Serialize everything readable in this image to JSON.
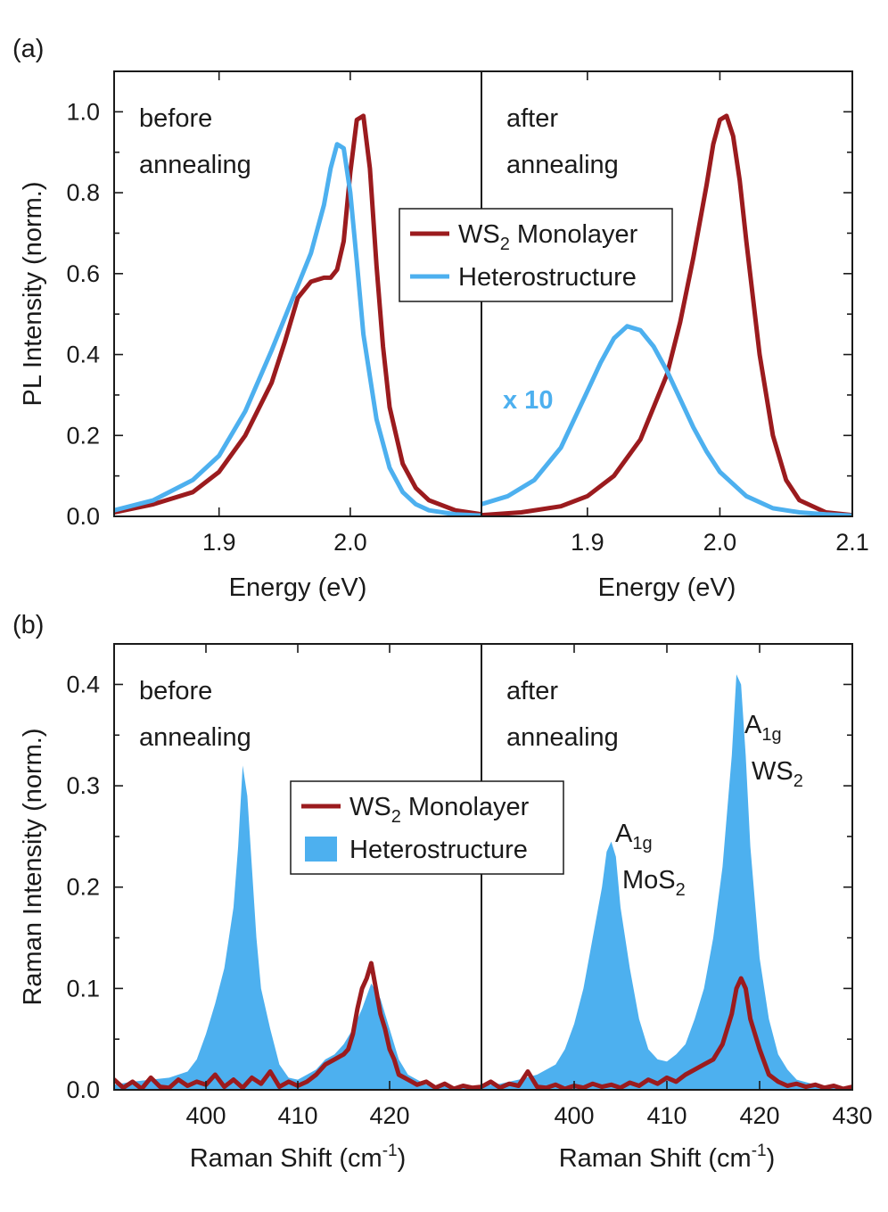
{
  "figure": {
    "panel_a_label": "(a)",
    "panel_b_label": "(b)"
  },
  "colors": {
    "ws2": "#9b1b1e",
    "hetero": "#4db0ef",
    "axis": "#1a1a1a"
  },
  "chart_data": [
    {
      "panel": "a",
      "type": "line",
      "xlabel": "Energy (eV)",
      "ylabel": "PL Intensity (norm.)",
      "ylim": [
        0.0,
        1.1
      ],
      "yticks": [
        0.0,
        0.2,
        0.4,
        0.6,
        0.8,
        1.0
      ],
      "ytick_labels": [
        "0.0",
        "0.2",
        "0.4",
        "0.6",
        "0.8",
        "1.0"
      ],
      "legend": {
        "placement": "center-right",
        "ws2_main": "WS",
        "ws2_sub": "2",
        "ws2_rest": " Monolayer",
        "hetero": "Heterostructure"
      },
      "subplots": [
        {
          "annotation_lines": [
            "before",
            "annealing"
          ],
          "xlim": [
            1.82,
            2.1
          ],
          "xticks": [
            1.9,
            2.0
          ],
          "xtick_labels": [
            "1.9",
            "2.0"
          ],
          "series": [
            {
              "name": "WS2 Monolayer",
              "color_key": "ws2",
              "x": [
                1.82,
                1.85,
                1.88,
                1.9,
                1.92,
                1.94,
                1.95,
                1.96,
                1.97,
                1.98,
                1.985,
                1.99,
                1.995,
                2.0,
                2.005,
                2.01,
                2.015,
                2.02,
                2.025,
                2.03,
                2.04,
                2.05,
                2.06,
                2.08,
                2.1
              ],
              "y": [
                0.01,
                0.03,
                0.06,
                0.11,
                0.2,
                0.33,
                0.43,
                0.54,
                0.58,
                0.59,
                0.59,
                0.61,
                0.68,
                0.85,
                0.98,
                0.99,
                0.86,
                0.62,
                0.42,
                0.27,
                0.13,
                0.07,
                0.04,
                0.015,
                0.005
              ]
            },
            {
              "name": "Heterostructure",
              "color_key": "hetero",
              "x": [
                1.82,
                1.85,
                1.88,
                1.9,
                1.92,
                1.94,
                1.95,
                1.96,
                1.97,
                1.98,
                1.985,
                1.99,
                1.995,
                2.0,
                2.005,
                2.01,
                2.02,
                2.03,
                2.04,
                2.05,
                2.06,
                2.08,
                2.1
              ],
              "y": [
                0.015,
                0.04,
                0.09,
                0.15,
                0.26,
                0.41,
                0.49,
                0.57,
                0.65,
                0.77,
                0.86,
                0.92,
                0.91,
                0.8,
                0.63,
                0.45,
                0.24,
                0.12,
                0.06,
                0.03,
                0.015,
                0.005,
                0.002
              ]
            }
          ]
        },
        {
          "annotation_lines": [
            "after",
            "annealing"
          ],
          "multiplier_label": "x 10",
          "xlim": [
            1.82,
            2.1
          ],
          "xticks": [
            1.9,
            2.0,
            2.1
          ],
          "xtick_labels": [
            "1.9",
            "2.0",
            "2.1"
          ],
          "series": [
            {
              "name": "WS2 Monolayer",
              "color_key": "ws2",
              "x": [
                1.82,
                1.85,
                1.88,
                1.9,
                1.92,
                1.94,
                1.96,
                1.97,
                1.98,
                1.99,
                1.995,
                2.0,
                2.005,
                2.01,
                2.015,
                2.02,
                2.03,
                2.04,
                2.05,
                2.06,
                2.08,
                2.1
              ],
              "y": [
                0.003,
                0.01,
                0.025,
                0.05,
                0.1,
                0.19,
                0.35,
                0.48,
                0.64,
                0.82,
                0.92,
                0.98,
                0.99,
                0.94,
                0.83,
                0.68,
                0.4,
                0.2,
                0.09,
                0.04,
                0.01,
                0.003
              ]
            },
            {
              "name": "Heterostructure",
              "color_key": "hetero",
              "x": [
                1.82,
                1.84,
                1.86,
                1.88,
                1.9,
                1.91,
                1.92,
                1.93,
                1.94,
                1.95,
                1.96,
                1.97,
                1.98,
                1.99,
                2.0,
                2.02,
                2.04,
                2.06,
                2.08,
                2.1
              ],
              "y": [
                0.03,
                0.05,
                0.09,
                0.17,
                0.31,
                0.38,
                0.44,
                0.47,
                0.46,
                0.42,
                0.36,
                0.29,
                0.22,
                0.16,
                0.11,
                0.05,
                0.02,
                0.01,
                0.005,
                0.002
              ]
            }
          ]
        }
      ]
    },
    {
      "panel": "b",
      "type": "area",
      "xlabel_main": "Raman Shift (cm",
      "xlabel_sup": "-1",
      "xlabel_end": ")",
      "ylabel": "Raman Intensity (norm.)",
      "ylim": [
        0.0,
        0.44
      ],
      "yticks": [
        0.0,
        0.1,
        0.2,
        0.3,
        0.4
      ],
      "ytick_labels": [
        "0.0",
        "0.1",
        "0.2",
        "0.3",
        "0.4"
      ],
      "legend": {
        "placement": "center",
        "ws2_main": "WS",
        "ws2_sub": "2",
        "ws2_rest": " Monolayer",
        "hetero": "Heterostructure"
      },
      "subplots": [
        {
          "annotation_lines": [
            "before",
            "annealing"
          ],
          "xlim": [
            390,
            430
          ],
          "xticks": [
            400,
            410,
            420
          ],
          "xtick_labels": [
            "400",
            "410",
            "420"
          ],
          "series": [
            {
              "name": "Heterostructure",
              "color_key": "hetero",
              "fill": true,
              "x": [
                390,
                392,
                394,
                396,
                398,
                399,
                400,
                401,
                402,
                403,
                403.5,
                404,
                404.5,
                405,
                405.5,
                406,
                407,
                408,
                409,
                410,
                411,
                412,
                413,
                414,
                415,
                416,
                417,
                418,
                419,
                420,
                421,
                422,
                423,
                424,
                426,
                428,
                430
              ],
              "y": [
                0.005,
                0.008,
                0.01,
                0.012,
                0.018,
                0.03,
                0.055,
                0.085,
                0.12,
                0.18,
                0.24,
                0.32,
                0.29,
                0.22,
                0.15,
                0.1,
                0.06,
                0.025,
                0.012,
                0.01,
                0.015,
                0.02,
                0.03,
                0.035,
                0.045,
                0.06,
                0.08,
                0.105,
                0.09,
                0.06,
                0.03,
                0.015,
                0.01,
                0.005,
                0.004,
                0.003,
                0.002
              ]
            },
            {
              "name": "WS2 Monolayer",
              "color_key": "ws2",
              "x": [
                390,
                391,
                392,
                393,
                394,
                395,
                396,
                397,
                398,
                399,
                400,
                401,
                402,
                403,
                404,
                405,
                406,
                407,
                408,
                409,
                410,
                411,
                412,
                413,
                414,
                415,
                415.5,
                416,
                416.5,
                417,
                417.5,
                418,
                418.5,
                419,
                419.5,
                420,
                420.5,
                421,
                422,
                423,
                424,
                425,
                426,
                427,
                428,
                429,
                430
              ],
              "y": [
                0.01,
                0.002,
                0.008,
                0.001,
                0.012,
                0.003,
                0.002,
                0.01,
                0.004,
                0.008,
                0.005,
                0.015,
                0.003,
                0.01,
                0.002,
                0.012,
                0.006,
                0.018,
                0.003,
                0.008,
                0.004,
                0.008,
                0.015,
                0.025,
                0.03,
                0.035,
                0.04,
                0.055,
                0.08,
                0.1,
                0.11,
                0.125,
                0.1,
                0.075,
                0.06,
                0.04,
                0.03,
                0.015,
                0.01,
                0.005,
                0.008,
                0.002,
                0.006,
                0.001,
                0.004,
                0.002,
                0.003
              ]
            }
          ]
        },
        {
          "annotation_lines": [
            "after",
            "annealing"
          ],
          "peak_labels": [
            {
              "main": "A",
              "sub": "1g",
              "line2_main": "MoS",
              "line2_sub": "2"
            },
            {
              "main": "A",
              "sub": "1g",
              "line2_main": "WS",
              "line2_sub": "2"
            }
          ],
          "xlim": [
            390,
            430
          ],
          "xticks": [
            400,
            410,
            420,
            430
          ],
          "xtick_labels": [
            "400",
            "410",
            "420",
            "430"
          ],
          "series": [
            {
              "name": "Heterostructure",
              "color_key": "hetero",
              "fill": true,
              "x": [
                390,
                392,
                394,
                396,
                398,
                399,
                400,
                401,
                402,
                403,
                403.5,
                404,
                404.5,
                405,
                406,
                407,
                408,
                409,
                410,
                411,
                412,
                413,
                414,
                415,
                416,
                417,
                417.5,
                418,
                418.5,
                419,
                420,
                421,
                422,
                423,
                424,
                426,
                428,
                430
              ],
              "y": [
                0.004,
                0.006,
                0.01,
                0.015,
                0.025,
                0.04,
                0.065,
                0.1,
                0.15,
                0.2,
                0.235,
                0.245,
                0.23,
                0.18,
                0.12,
                0.07,
                0.04,
                0.03,
                0.028,
                0.035,
                0.045,
                0.07,
                0.1,
                0.15,
                0.22,
                0.33,
                0.41,
                0.4,
                0.33,
                0.24,
                0.13,
                0.07,
                0.035,
                0.02,
                0.01,
                0.005,
                0.003,
                0.002
              ]
            },
            {
              "name": "WS2 Monolayer",
              "color_key": "ws2",
              "x": [
                390,
                391,
                392,
                393,
                394,
                395,
                396,
                397,
                398,
                399,
                400,
                401,
                402,
                403,
                404,
                405,
                406,
                407,
                408,
                409,
                410,
                411,
                412,
                413,
                414,
                415,
                416,
                417,
                417.5,
                418,
                418.5,
                419,
                420,
                421,
                422,
                423,
                424,
                425,
                426,
                427,
                428,
                429,
                430
              ],
              "y": [
                0.003,
                0.008,
                0.002,
                0.006,
                0.004,
                0.018,
                0.003,
                0.002,
                0.005,
                0.001,
                0.004,
                0.002,
                0.006,
                0.003,
                0.005,
                0.002,
                0.007,
                0.004,
                0.01,
                0.006,
                0.012,
                0.008,
                0.015,
                0.02,
                0.025,
                0.03,
                0.045,
                0.075,
                0.1,
                0.11,
                0.1,
                0.07,
                0.04,
                0.015,
                0.008,
                0.004,
                0.006,
                0.003,
                0.005,
                0.002,
                0.004,
                0.001,
                0.003
              ]
            }
          ]
        }
      ]
    }
  ]
}
